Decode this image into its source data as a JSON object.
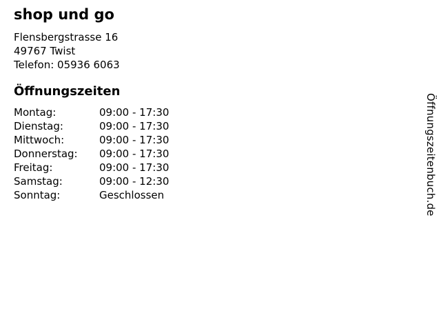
{
  "business": {
    "name": "shop und go",
    "address_line1": "Flensbergstrasse 16",
    "address_line2": "49767 Twist",
    "phone": "Telefon: 05936 6063"
  },
  "hours": {
    "heading": "Öffnungszeiten",
    "rows": [
      {
        "day": "Montag:",
        "time": "09:00 - 17:30"
      },
      {
        "day": "Dienstag:",
        "time": "09:00 - 17:30"
      },
      {
        "day": "Mittwoch:",
        "time": "09:00 - 17:30"
      },
      {
        "day": "Donnerstag:",
        "time": "09:00 - 17:30"
      },
      {
        "day": "Freitag:",
        "time": "09:00 - 17:30"
      },
      {
        "day": "Samstag:",
        "time": "09:00 - 12:30"
      },
      {
        "day": "Sonntag:",
        "time": "Geschlossen"
      }
    ]
  },
  "watermark": {
    "text": "Öffnungszeitenbuch.de"
  },
  "colors": {
    "background": "#ffffff",
    "text": "#000000"
  }
}
